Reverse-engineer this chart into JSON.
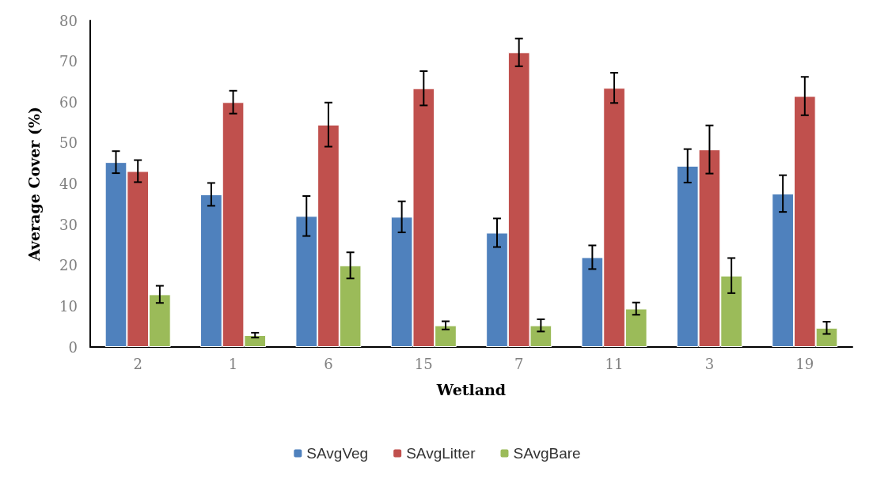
{
  "chart_data": {
    "type": "bar",
    "xlabel": "Wetland",
    "ylabel": "Average Cover (%)",
    "categories": [
      "2",
      "1",
      "6",
      "15",
      "7",
      "11",
      "3",
      "19"
    ],
    "series": [
      {
        "name": "SAvgVeg",
        "color": "#4f81bd",
        "values": [
          45.3,
          37.4,
          32.1,
          31.9,
          28.0,
          22.0,
          44.4,
          37.6
        ],
        "errors": [
          2.7,
          2.8,
          4.9,
          3.8,
          3.5,
          2.9,
          4.1,
          4.5
        ]
      },
      {
        "name": "SAvgLitter",
        "color": "#c0504d",
        "values": [
          43.1,
          60.0,
          54.5,
          63.4,
          72.2,
          63.5,
          48.4,
          61.5
        ],
        "errors": [
          2.7,
          2.8,
          5.4,
          4.2,
          3.4,
          3.7,
          5.9,
          4.7
        ]
      },
      {
        "name": "SAvgBare",
        "color": "#9bbb59",
        "values": [
          12.9,
          2.9,
          20.0,
          5.3,
          5.3,
          9.4,
          17.5,
          4.7
        ],
        "errors": [
          2.1,
          0.6,
          3.2,
          1.0,
          1.5,
          1.5,
          4.3,
          1.5
        ]
      }
    ],
    "ylim": [
      0,
      80
    ],
    "yticks": [
      0,
      10,
      20,
      30,
      40,
      50,
      60,
      70,
      80
    ],
    "grid": false,
    "legend": "bottom"
  }
}
